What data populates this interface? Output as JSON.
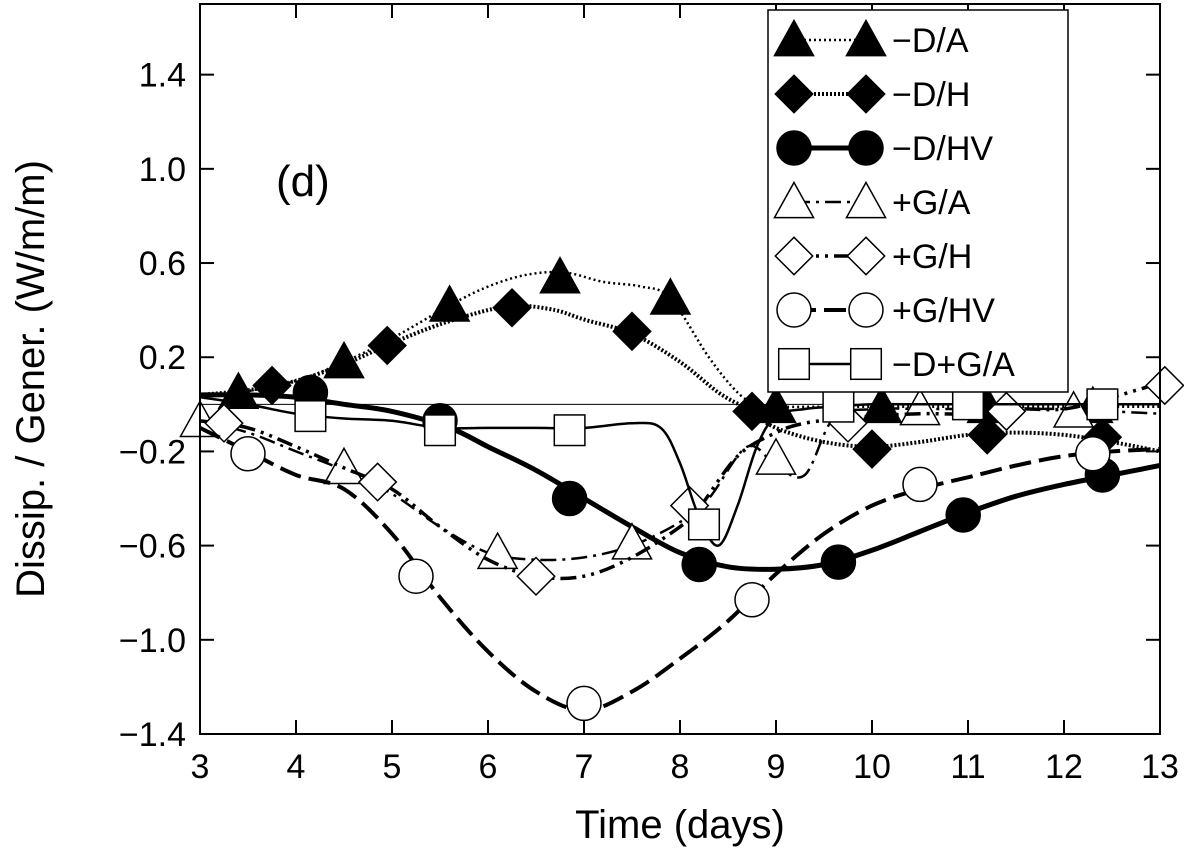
{
  "chart_data": {
    "type": "line",
    "panel_label": "(d)",
    "xlabel": "Time (days)",
    "ylabel": "Dissip. / Gener. (W/m/m)",
    "xlim": [
      3,
      13
    ],
    "ylim": [
      -1.4,
      1.7
    ],
    "xticks": [
      3,
      4,
      5,
      6,
      7,
      8,
      9,
      10,
      11,
      12,
      13
    ],
    "yticks": [
      -1.4,
      -1.0,
      -0.6,
      -0.2,
      0.2,
      0.6,
      1.0,
      1.4
    ],
    "xtick_labels": [
      "3",
      "4",
      "5",
      "6",
      "7",
      "8",
      "9",
      "10",
      "11",
      "12",
      "13"
    ],
    "ytick_labels": [
      "−1.4",
      "−1.0",
      "−0.6",
      "−0.2",
      "0.2",
      "0.6",
      "1.0",
      "1.4"
    ],
    "zero_line": 0,
    "legend_position": "top-right",
    "series": [
      {
        "name": "−D/A",
        "marker": "triangle",
        "filled": true,
        "line": "dotted",
        "x": [
          3.0,
          3.4,
          4.0,
          4.5,
          5.0,
          5.6,
          6.0,
          6.4,
          6.8,
          7.2,
          7.6,
          7.9,
          8.3,
          8.6,
          8.8,
          9.0,
          9.5,
          10.0,
          10.5,
          11.0,
          11.5,
          12.0,
          12.5,
          13.0
        ],
        "y": [
          0.04,
          0.05,
          0.1,
          0.18,
          0.28,
          0.42,
          0.5,
          0.55,
          0.56,
          0.52,
          0.5,
          0.45,
          0.2,
          0.05,
          0.0,
          -0.01,
          -0.01,
          -0.01,
          -0.01,
          -0.01,
          -0.01,
          -0.01,
          -0.01,
          -0.01
        ],
        "marker_x": [
          3.4,
          4.5,
          5.6,
          6.75,
          7.9,
          9.0,
          10.1,
          11.2,
          12.3
        ],
        "marker_y": [
          0.05,
          0.18,
          0.42,
          0.54,
          0.45,
          -0.01,
          -0.01,
          -0.01,
          -0.01
        ]
      },
      {
        "name": "−D/H",
        "marker": "diamond",
        "filled": true,
        "line": "dotted-thick",
        "x": [
          3.0,
          3.5,
          4.0,
          4.5,
          5.0,
          5.5,
          6.0,
          6.3,
          6.7,
          7.0,
          7.5,
          8.0,
          8.4,
          8.7,
          9.0,
          9.5,
          10.0,
          10.5,
          11.0,
          11.5,
          12.0,
          12.5,
          13.0
        ],
        "y": [
          0.04,
          0.06,
          0.1,
          0.17,
          0.26,
          0.34,
          0.4,
          0.42,
          0.4,
          0.36,
          0.3,
          0.18,
          0.05,
          -0.02,
          -0.1,
          -0.16,
          -0.18,
          -0.16,
          -0.13,
          -0.12,
          -0.13,
          -0.16,
          -0.2
        ],
        "marker_x": [
          3.75,
          4.95,
          6.25,
          7.5,
          8.75,
          10.0,
          11.2,
          12.4
        ],
        "marker_y": [
          0.08,
          0.25,
          0.41,
          0.31,
          -0.03,
          -0.19,
          -0.13,
          -0.14
        ]
      },
      {
        "name": "−D/HV",
        "marker": "circle",
        "filled": true,
        "line": "solid-thick",
        "x": [
          3.0,
          3.5,
          4.0,
          4.5,
          5.0,
          5.6,
          6.0,
          6.5,
          7.0,
          7.5,
          8.0,
          8.5,
          9.0,
          9.5,
          10.0,
          10.5,
          11.0,
          11.5,
          12.0,
          12.5,
          13.0
        ],
        "y": [
          0.04,
          0.04,
          0.03,
          0.0,
          -0.03,
          -0.1,
          -0.18,
          -0.28,
          -0.4,
          -0.52,
          -0.63,
          -0.69,
          -0.7,
          -0.68,
          -0.62,
          -0.54,
          -0.46,
          -0.39,
          -0.34,
          -0.3,
          -0.26
        ],
        "marker_x": [
          4.15,
          5.5,
          6.85,
          8.2,
          9.65,
          10.95,
          12.4
        ],
        "marker_y": [
          0.05,
          -0.07,
          -0.4,
          -0.68,
          -0.67,
          -0.47,
          -0.3
        ]
      },
      {
        "name": "+G/A",
        "marker": "triangle",
        "filled": false,
        "line": "dash-dot",
        "x": [
          3.0,
          3.5,
          4.0,
          4.5,
          5.0,
          5.5,
          6.0,
          6.5,
          7.0,
          7.5,
          8.0,
          8.3,
          8.7,
          9.0,
          9.3,
          9.6,
          10.0,
          10.5,
          11.0,
          11.5,
          12.0,
          12.5,
          13.0
        ],
        "y": [
          -0.07,
          -0.12,
          -0.2,
          -0.28,
          -0.38,
          -0.52,
          -0.63,
          -0.66,
          -0.65,
          -0.6,
          -0.5,
          -0.4,
          -0.18,
          -0.26,
          -0.3,
          -0.06,
          -0.02,
          -0.02,
          -0.02,
          -0.02,
          -0.02,
          -0.03,
          -0.04
        ],
        "marker_x": [
          3.0,
          4.5,
          6.1,
          7.5,
          9.0,
          10.5,
          12.1
        ],
        "marker_y": [
          -0.07,
          -0.27,
          -0.63,
          -0.59,
          -0.23,
          -0.02,
          -0.03
        ]
      },
      {
        "name": "+G/H",
        "marker": "diamond",
        "filled": false,
        "line": "dash-dot-dot",
        "x": [
          3.0,
          3.5,
          4.0,
          4.5,
          5.0,
          5.5,
          6.0,
          6.5,
          7.0,
          7.5,
          8.0,
          8.2,
          8.6,
          9.0,
          9.3,
          9.7,
          10.0,
          10.5,
          11.0,
          11.5,
          12.0,
          12.5,
          13.0
        ],
        "y": [
          -0.07,
          -0.1,
          -0.18,
          -0.27,
          -0.36,
          -0.52,
          -0.66,
          -0.73,
          -0.73,
          -0.65,
          -0.52,
          -0.44,
          -0.22,
          -0.12,
          -0.08,
          -0.06,
          -0.05,
          -0.04,
          -0.04,
          -0.02,
          -0.02,
          0.03,
          0.09
        ],
        "marker_x": [
          3.25,
          4.85,
          6.5,
          8.1,
          9.75,
          11.4,
          13.05
        ],
        "marker_y": [
          -0.08,
          -0.33,
          -0.73,
          -0.43,
          -0.08,
          -0.03,
          0.08
        ]
      },
      {
        "name": "+G/HV",
        "marker": "circle",
        "filled": false,
        "line": "dashed-thick",
        "x": [
          3.0,
          3.5,
          4.0,
          4.5,
          5.0,
          5.5,
          6.0,
          6.5,
          7.0,
          7.5,
          8.0,
          8.5,
          9.0,
          9.5,
          10.0,
          10.5,
          11.0,
          11.5,
          12.0,
          12.5,
          13.0
        ],
        "y": [
          -0.1,
          -0.2,
          -0.3,
          -0.36,
          -0.55,
          -0.82,
          -1.05,
          -1.22,
          -1.3,
          -1.22,
          -1.08,
          -0.92,
          -0.72,
          -0.55,
          -0.43,
          -0.36,
          -0.31,
          -0.26,
          -0.22,
          -0.2,
          -0.19
        ],
        "marker_x": [
          3.5,
          5.25,
          7.0,
          8.75,
          10.5,
          12.3
        ],
        "marker_y": [
          -0.21,
          -0.73,
          -1.27,
          -0.83,
          -0.34,
          -0.21
        ]
      },
      {
        "name": "−D+G/A",
        "marker": "square",
        "filled": false,
        "line": "solid",
        "x": [
          3.0,
          3.5,
          4.0,
          4.5,
          5.0,
          5.5,
          6.0,
          6.5,
          7.0,
          7.5,
          7.8,
          8.0,
          8.2,
          8.4,
          8.6,
          8.8,
          9.0,
          9.3,
          9.6,
          10.0,
          10.5,
          11.0,
          11.5,
          12.0,
          12.5,
          13.0
        ],
        "y": [
          0.03,
          0.0,
          -0.04,
          -0.06,
          -0.07,
          -0.1,
          -0.1,
          -0.1,
          -0.1,
          -0.08,
          -0.1,
          -0.25,
          -0.48,
          -0.6,
          -0.43,
          -0.18,
          -0.05,
          -0.02,
          -0.01,
          0.0,
          0.0,
          0.0,
          0.0,
          0.0,
          0.0,
          0.0
        ],
        "marker_x": [
          4.15,
          5.5,
          6.85,
          8.25,
          9.65,
          11.0,
          12.4
        ],
        "marker_y": [
          -0.05,
          -0.11,
          -0.11,
          -0.51,
          -0.01,
          0.0,
          0.0
        ]
      }
    ]
  }
}
